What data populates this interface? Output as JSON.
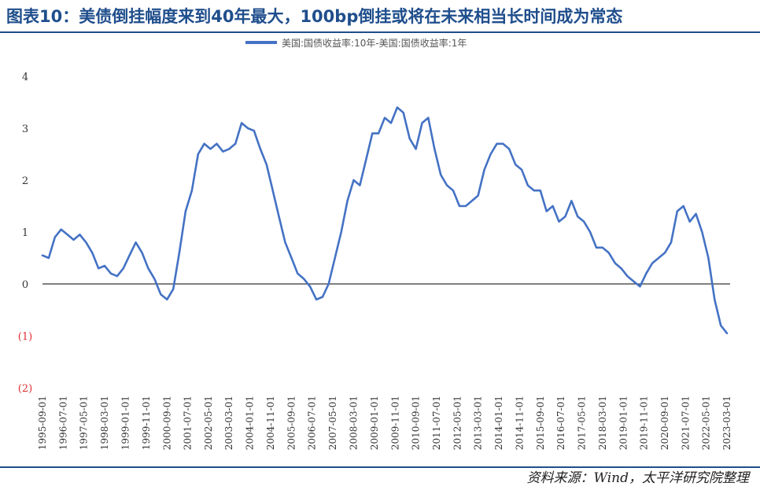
{
  "header": {
    "title": "图表10：美债倒挂幅度来到40年最大，100bp倒挂或将在未来相当长时间成为常态"
  },
  "footer": {
    "source": "资料来源：Wind，太平洋研究院整理"
  },
  "colors": {
    "title": "#1f4e8c",
    "series": "#4472c4",
    "negative_tick": "#e03030",
    "axis": "#000000"
  },
  "chart_data": {
    "type": "line",
    "title": "",
    "xlabel": "",
    "ylabel": "",
    "ylim": [
      -2,
      4
    ],
    "yticks": [
      {
        "value": 4,
        "label": "4"
      },
      {
        "value": 3,
        "label": "3"
      },
      {
        "value": 2,
        "label": "2"
      },
      {
        "value": 1,
        "label": "1"
      },
      {
        "value": 0,
        "label": "0"
      },
      {
        "value": -1,
        "label": "(1)"
      },
      {
        "value": -2,
        "label": "(2)"
      }
    ],
    "xticks": [
      "1995-09-01",
      "1996-07-01",
      "1997-05-01",
      "1998-03-01",
      "1999-01-01",
      "1999-11-01",
      "2000-09-01",
      "2001-07-01",
      "2002-05-01",
      "2003-03-01",
      "2004-01-01",
      "2004-11-01",
      "2005-09-01",
      "2006-07-01",
      "2007-05-01",
      "2008-03-01",
      "2009-01-01",
      "2009-11-01",
      "2010-09-01",
      "2011-07-01",
      "2012-05-01",
      "2013-03-01",
      "2014-01-01",
      "2014-11-01",
      "2015-09-01",
      "2016-07-01",
      "2017-05-01",
      "2018-03-01",
      "2019-01-01",
      "2019-11-01",
      "2020-09-01",
      "2021-07-01",
      "2022-05-01",
      "2023-03-01"
    ],
    "grid": false,
    "legend_position": "top-center",
    "series": [
      {
        "name": "美国:国债收益率:10年-美国:国债收益率:1年",
        "x": [
          "1995-09-01",
          "1995-12-01",
          "1996-03-01",
          "1996-06-01",
          "1996-09-01",
          "1996-12-01",
          "1997-03-01",
          "1997-06-01",
          "1997-09-01",
          "1997-12-01",
          "1998-03-01",
          "1998-06-01",
          "1998-09-01",
          "1998-12-01",
          "1999-03-01",
          "1999-06-01",
          "1999-09-01",
          "1999-12-01",
          "2000-03-01",
          "2000-06-01",
          "2000-09-01",
          "2000-12-01",
          "2001-03-01",
          "2001-06-01",
          "2001-09-01",
          "2001-12-01",
          "2002-03-01",
          "2002-06-01",
          "2002-09-01",
          "2002-12-01",
          "2003-03-01",
          "2003-06-01",
          "2003-09-01",
          "2003-12-01",
          "2004-03-01",
          "2004-06-01",
          "2004-09-01",
          "2004-12-01",
          "2005-03-01",
          "2005-06-01",
          "2005-09-01",
          "2005-12-01",
          "2006-03-01",
          "2006-06-01",
          "2006-09-01",
          "2006-12-01",
          "2007-03-01",
          "2007-06-01",
          "2007-09-01",
          "2007-12-01",
          "2008-03-01",
          "2008-06-01",
          "2008-09-01",
          "2008-12-01",
          "2009-03-01",
          "2009-06-01",
          "2009-09-01",
          "2009-12-01",
          "2010-03-01",
          "2010-06-01",
          "2010-09-01",
          "2010-12-01",
          "2011-03-01",
          "2011-06-01",
          "2011-09-01",
          "2011-12-01",
          "2012-03-01",
          "2012-06-01",
          "2012-09-01",
          "2012-12-01",
          "2013-03-01",
          "2013-06-01",
          "2013-09-01",
          "2013-12-01",
          "2014-03-01",
          "2014-06-01",
          "2014-09-01",
          "2014-12-01",
          "2015-03-01",
          "2015-06-01",
          "2015-09-01",
          "2015-12-01",
          "2016-03-01",
          "2016-06-01",
          "2016-09-01",
          "2016-12-01",
          "2017-03-01",
          "2017-06-01",
          "2017-09-01",
          "2017-12-01",
          "2018-03-01",
          "2018-06-01",
          "2018-09-01",
          "2018-12-01",
          "2019-03-01",
          "2019-06-01",
          "2019-09-01",
          "2019-12-01",
          "2020-03-01",
          "2020-06-01",
          "2020-09-01",
          "2020-12-01",
          "2021-03-01",
          "2021-06-01",
          "2021-09-01",
          "2021-12-01",
          "2022-03-01",
          "2022-06-01",
          "2022-09-01",
          "2022-12-01",
          "2023-03-01"
        ],
        "values": [
          0.55,
          0.5,
          0.9,
          1.05,
          0.95,
          0.85,
          0.95,
          0.8,
          0.6,
          0.3,
          0.35,
          0.2,
          0.15,
          0.3,
          0.55,
          0.8,
          0.6,
          0.3,
          0.1,
          -0.2,
          -0.3,
          -0.1,
          0.6,
          1.4,
          1.8,
          2.5,
          2.7,
          2.6,
          2.7,
          2.55,
          2.6,
          2.7,
          3.1,
          3.0,
          2.95,
          2.6,
          2.3,
          1.8,
          1.3,
          0.8,
          0.5,
          0.2,
          0.1,
          -0.05,
          -0.3,
          -0.25,
          0.0,
          0.5,
          1.0,
          1.6,
          2.0,
          1.9,
          2.4,
          2.9,
          2.9,
          3.2,
          3.1,
          3.4,
          3.3,
          2.8,
          2.6,
          3.1,
          3.2,
          2.6,
          2.1,
          1.9,
          1.8,
          1.5,
          1.5,
          1.6,
          1.7,
          2.2,
          2.5,
          2.7,
          2.7,
          2.6,
          2.3,
          2.2,
          1.9,
          1.8,
          1.8,
          1.4,
          1.5,
          1.2,
          1.3,
          1.6,
          1.3,
          1.2,
          1.0,
          0.7,
          0.7,
          0.6,
          0.4,
          0.3,
          0.15,
          0.05,
          -0.05,
          0.2,
          0.4,
          0.5,
          0.6,
          0.8,
          1.4,
          1.5,
          1.2,
          1.35,
          1.0,
          0.5,
          -0.3,
          -0.8,
          -0.95
        ]
      }
    ]
  }
}
